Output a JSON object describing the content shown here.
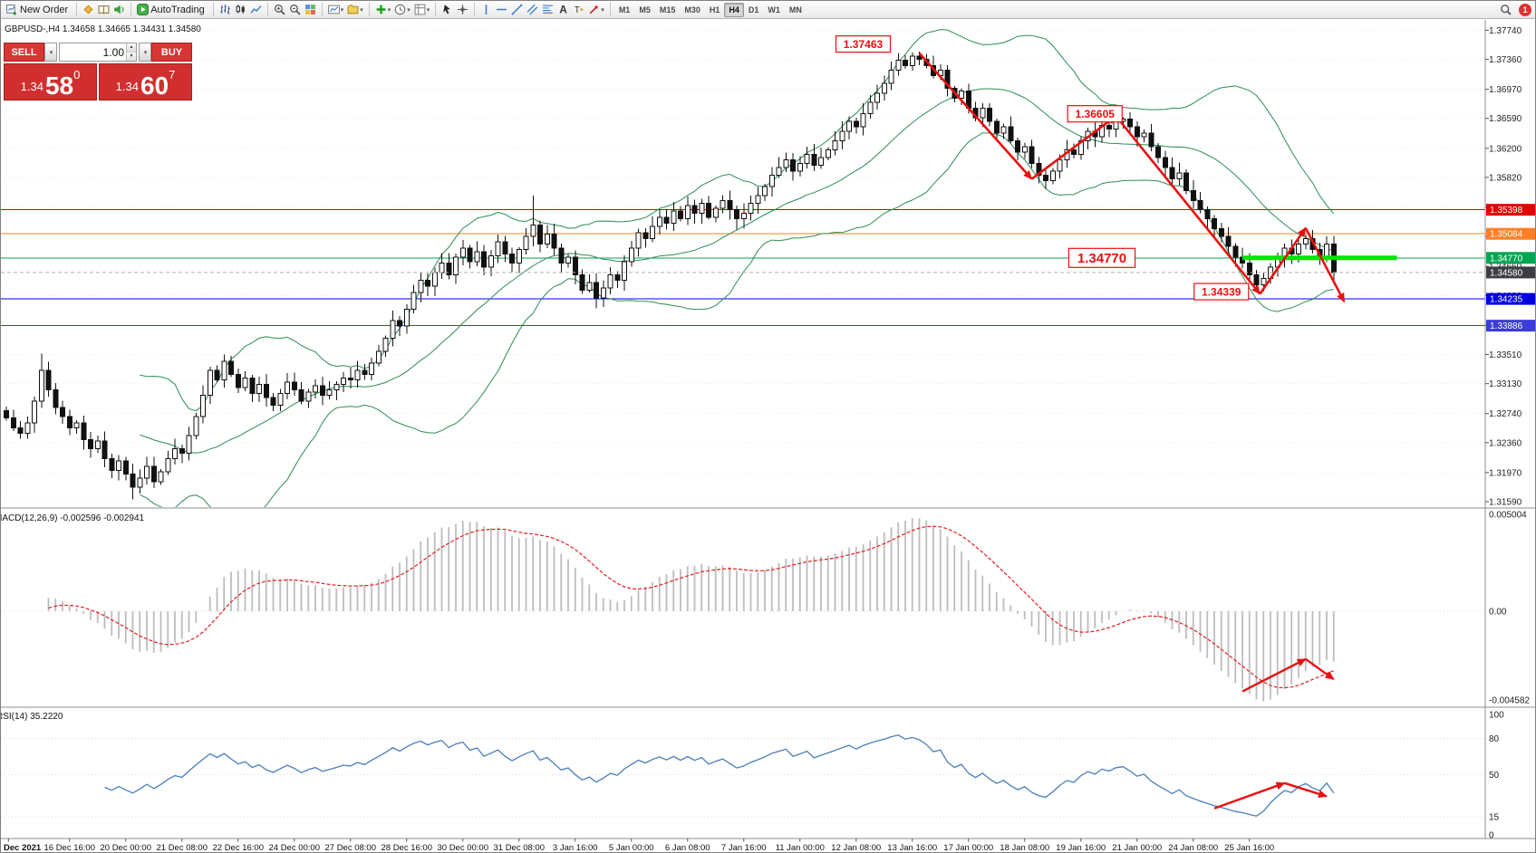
{
  "window": {
    "notification_badge": "1"
  },
  "toolbar": {
    "new_order": "New Order",
    "autotrading": "AutoTrading",
    "timeframes": [
      "M1",
      "M5",
      "M15",
      "M30",
      "H1",
      "H4",
      "D1",
      "W1",
      "MN"
    ],
    "active_timeframe": "H4"
  },
  "one_click": {
    "sell": "SELL",
    "buy": "BUY",
    "volume": "1.00",
    "bid": {
      "prefix": "1.34",
      "big": "58",
      "sup": "0"
    },
    "ask": {
      "prefix": "1.34",
      "big": "60",
      "sup": "7"
    }
  },
  "chart_data": {
    "type": "candlestick",
    "symbol": "GBPUSD-",
    "timeframe": "H4",
    "info_line": "GBPUSD-,H4  1.34658 1.34665 1.34431 1.34580",
    "open0": 1.3278,
    "closes": [
      1.3268,
      1.3255,
      1.3248,
      1.3262,
      1.329,
      1.333,
      1.3305,
      1.3282,
      1.327,
      1.3255,
      1.3262,
      1.324,
      1.3228,
      1.3238,
      1.3215,
      1.32,
      1.3212,
      1.3195,
      1.3178,
      1.319,
      1.3205,
      1.3185,
      1.3198,
      1.3215,
      1.3228,
      1.3222,
      1.3245,
      1.327,
      1.3298,
      1.333,
      1.3318,
      1.3342,
      1.3325,
      1.3308,
      1.332,
      1.33,
      1.3312,
      1.3295,
      1.3285,
      1.33,
      1.3315,
      1.3305,
      1.329,
      1.3302,
      1.331,
      1.3298,
      1.3305,
      1.3312,
      1.332,
      1.3318,
      1.333,
      1.3325,
      1.334,
      1.3355,
      1.3372,
      1.3395,
      1.3388,
      1.341,
      1.3432,
      1.3448,
      1.344,
      1.3458,
      1.347,
      1.3455,
      1.3478,
      1.349,
      1.3472,
      1.3485,
      1.3465,
      1.348,
      1.3498,
      1.3482,
      1.347,
      1.3488,
      1.3505,
      1.352,
      1.3495,
      1.3508,
      1.349,
      1.347,
      1.3478,
      1.3455,
      1.3435,
      1.3445,
      1.3425,
      1.3438,
      1.3455,
      1.3448,
      1.3472,
      1.349,
      1.351,
      1.3502,
      1.3518,
      1.353,
      1.3522,
      1.3538,
      1.3528,
      1.3545,
      1.3535,
      1.3548,
      1.353,
      1.3542,
      1.3552,
      1.354,
      1.3528,
      1.3535,
      1.3548,
      1.3558,
      1.357,
      1.3585,
      1.3595,
      1.3605,
      1.359,
      1.36,
      1.3612,
      1.3598,
      1.3608,
      1.3618,
      1.363,
      1.3642,
      1.3655,
      1.3648,
      1.3665,
      1.368,
      1.3692,
      1.3705,
      1.3722,
      1.3735,
      1.3728,
      1.374,
      1.3736,
      1.3728,
      1.3715,
      1.3722,
      1.3698,
      1.3685,
      1.3695,
      1.3672,
      1.366,
      1.3672,
      1.3655,
      1.364,
      1.3648,
      1.363,
      1.3615,
      1.3622,
      1.36,
      1.3585,
      1.3578,
      1.359,
      1.3605,
      1.3618,
      1.3612,
      1.363,
      1.3642,
      1.3635,
      1.365,
      1.3645,
      1.3655,
      1.3658,
      1.3648,
      1.3635,
      1.364,
      1.3622,
      1.3608,
      1.3595,
      1.358,
      1.3588,
      1.3565,
      1.3552,
      1.354,
      1.3528,
      1.3515,
      1.3505,
      1.3492,
      1.3478,
      1.347,
      1.3455,
      1.3442,
      1.345,
      1.3465,
      1.3478,
      1.349,
      1.3482,
      1.3495,
      1.3502,
      1.3488,
      1.3478,
      1.3495,
      1.3458
    ],
    "wick_overrides": {
      "5": {
        "h": 1.3352
      },
      "18": {
        "l": 1.3162
      },
      "75": {
        "h": 1.3558
      },
      "130": {
        "h": 1.37463
      },
      "159": {
        "h": 1.36605
      },
      "179": {
        "l": 1.34339
      },
      "189": {
        "l": 1.3443
      }
    },
    "bollinger": {
      "period": 20,
      "dev": 2,
      "color": "#2e8b57"
    },
    "price_axis": {
      "ticks": [
        "1.37740",
        "1.37360",
        "1.36970",
        "1.36590",
        "1.36200",
        "1.35820",
        "1.35430",
        "1.35050",
        "1.34660",
        "1.34280",
        "1.33890",
        "1.33510",
        "1.33130",
        "1.32740",
        "1.32360",
        "1.31970",
        "1.31590"
      ]
    },
    "hlines": [
      {
        "label": "1.35398",
        "color": "#e00000"
      },
      {
        "label": "1.35084",
        "color": "#ff7f27"
      },
      {
        "label": "1.34770",
        "color": "#00a651"
      },
      {
        "label": "1.34235",
        "color": "#0000e0"
      },
      {
        "label": "1.33886",
        "color": "#3c3cd8"
      }
    ],
    "current_price": {
      "label": "1.34580",
      "bg": "#3c3e44"
    },
    "support_segment": {
      "price": 1.3477,
      "i0": 176,
      "i1": 198,
      "color": "#00e400",
      "width": 5
    },
    "callouts": [
      {
        "text": "1.37463",
        "i": 122,
        "price": 1.3756,
        "size": 12
      },
      {
        "text": "1.36605",
        "i": 155,
        "price": 1.3665,
        "size": 12
      },
      {
        "text": "1.34770",
        "i": 156,
        "price": 1.3477,
        "size": 15
      },
      {
        "text": "1.34339",
        "i": 173,
        "price": 1.3433,
        "size": 12
      }
    ],
    "arrow_color": "#e81010",
    "arrows": [
      [
        [
          130,
          1.3744
        ],
        [
          146,
          1.358
        ]
      ],
      [
        [
          146,
          1.358
        ],
        [
          158,
          1.3662
        ]
      ],
      [
        [
          158,
          1.3662
        ],
        [
          178.5,
          1.343
        ]
      ],
      [
        [
          178.5,
          1.343
        ],
        [
          185,
          1.3516
        ]
      ],
      [
        [
          185,
          1.3516
        ],
        [
          190.5,
          1.342
        ]
      ]
    ],
    "time_axis": [
      {
        "i": 0.3,
        "label": "Dec 2021",
        "bold": true
      },
      {
        "i": 9,
        "label": "16 Dec 16:00"
      },
      {
        "i": 17,
        "label": "20 Dec 00:00"
      },
      {
        "i": 25,
        "label": "21 Dec 08:00"
      },
      {
        "i": 33,
        "label": "22 Dec 16:00"
      },
      {
        "i": 41,
        "label": "24 Dec 00:00"
      },
      {
        "i": 49,
        "label": "27 Dec 08:00"
      },
      {
        "i": 57,
        "label": "28 Dec 16:00"
      },
      {
        "i": 65,
        "label": "30 Dec 00:00"
      },
      {
        "i": 73,
        "label": "31 Dec 08:00"
      },
      {
        "i": 81,
        "label": "3 Jan 16:00"
      },
      {
        "i": 89,
        "label": "5 Jan 00:00"
      },
      {
        "i": 97,
        "label": "6 Jan 08:00"
      },
      {
        "i": 105,
        "label": "7 Jan 16:00"
      },
      {
        "i": 113,
        "label": "11 Jan 00:00"
      },
      {
        "i": 121,
        "label": "12 Jan 08:00"
      },
      {
        "i": 129,
        "label": "13 Jan 16:00"
      },
      {
        "i": 137,
        "label": "17 Jan 00:00"
      },
      {
        "i": 145,
        "label": "18 Jan 08:00"
      },
      {
        "i": 153,
        "label": "19 Jan 16:00"
      },
      {
        "i": 161,
        "label": "21 Jan 00:00"
      },
      {
        "i": 169,
        "label": "24 Jan 08:00"
      },
      {
        "i": 177,
        "label": "25 Jan 16:00"
      }
    ],
    "macd": {
      "title": "MACD(12,26,9) -0.002596 -0.002941",
      "fast": 12,
      "slow": 26,
      "signal": 9,
      "axis": [
        {
          "v": 0.005004,
          "label": "0.005004"
        },
        {
          "v": 0,
          "label": "0.00"
        },
        {
          "v": -0.004582,
          "label": "-0.004582"
        }
      ],
      "arrows": [
        [
          [
            176,
            -0.00414
          ],
          [
            185,
            -0.00247
          ]
        ],
        [
          [
            185,
            -0.00247
          ],
          [
            189,
            -0.00351
          ]
        ]
      ]
    },
    "rsi": {
      "title": "RSI(14) 35.2220",
      "period": 14,
      "color": "#4a7ebb",
      "axis": [
        {
          "v": 100,
          "label": "100"
        },
        {
          "v": 80,
          "label": "80"
        },
        {
          "v": 50,
          "label": "50"
        },
        {
          "v": 15,
          "label": "15"
        },
        {
          "v": 0,
          "label": "0"
        }
      ],
      "levels": [
        80,
        50,
        15
      ],
      "arrows": [
        [
          [
            172,
            22
          ],
          [
            182,
            43
          ]
        ],
        [
          [
            182,
            43
          ],
          [
            188,
            32
          ]
        ]
      ]
    }
  }
}
